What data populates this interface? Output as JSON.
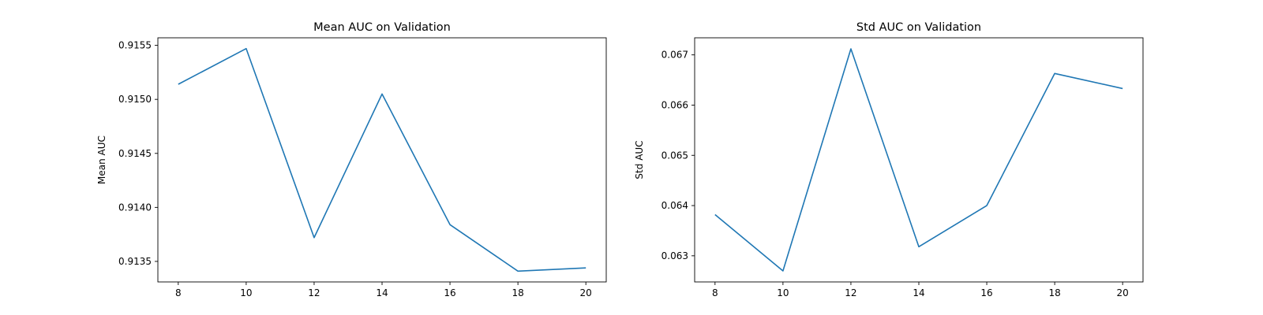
{
  "chart_data": [
    {
      "type": "line",
      "title": "Mean AUC on Validation",
      "xlabel": "",
      "ylabel": "Mean AUC",
      "x": [
        8,
        10,
        12,
        14,
        16,
        18,
        20
      ],
      "series": [
        {
          "values": [
            0.91514,
            0.91547,
            0.91372,
            0.91505,
            0.91384,
            0.91341,
            0.91344
          ]
        }
      ],
      "xlim": [
        7.4,
        20.6
      ],
      "ylim": [
        0.91331,
        0.91557
      ],
      "xticks": [
        8,
        10,
        12,
        14,
        16,
        18,
        20
      ],
      "yticks": [
        0.9135,
        0.914,
        0.9145,
        0.915,
        0.9155
      ],
      "ytick_labels": [
        "0.9135",
        "0.9140",
        "0.9145",
        "0.9150",
        "0.9155"
      ],
      "grid": false,
      "line_color": "#1f77b4"
    },
    {
      "type": "line",
      "title": "Std AUC on Validation",
      "xlabel": "",
      "ylabel": "Std AUC",
      "x": [
        8,
        10,
        12,
        14,
        16,
        18,
        20
      ],
      "series": [
        {
          "values": [
            0.06382,
            0.0627,
            0.06712,
            0.06318,
            0.064,
            0.06663,
            0.06633
          ]
        }
      ],
      "xlim": [
        7.4,
        20.6
      ],
      "ylim": [
        0.06248,
        0.06734
      ],
      "xticks": [
        8,
        10,
        12,
        14,
        16,
        18,
        20
      ],
      "yticks": [
        0.063,
        0.064,
        0.065,
        0.066,
        0.067
      ],
      "ytick_labels": [
        "0.063",
        "0.064",
        "0.065",
        "0.066",
        "0.067"
      ],
      "grid": false,
      "line_color": "#1f77b4"
    }
  ]
}
